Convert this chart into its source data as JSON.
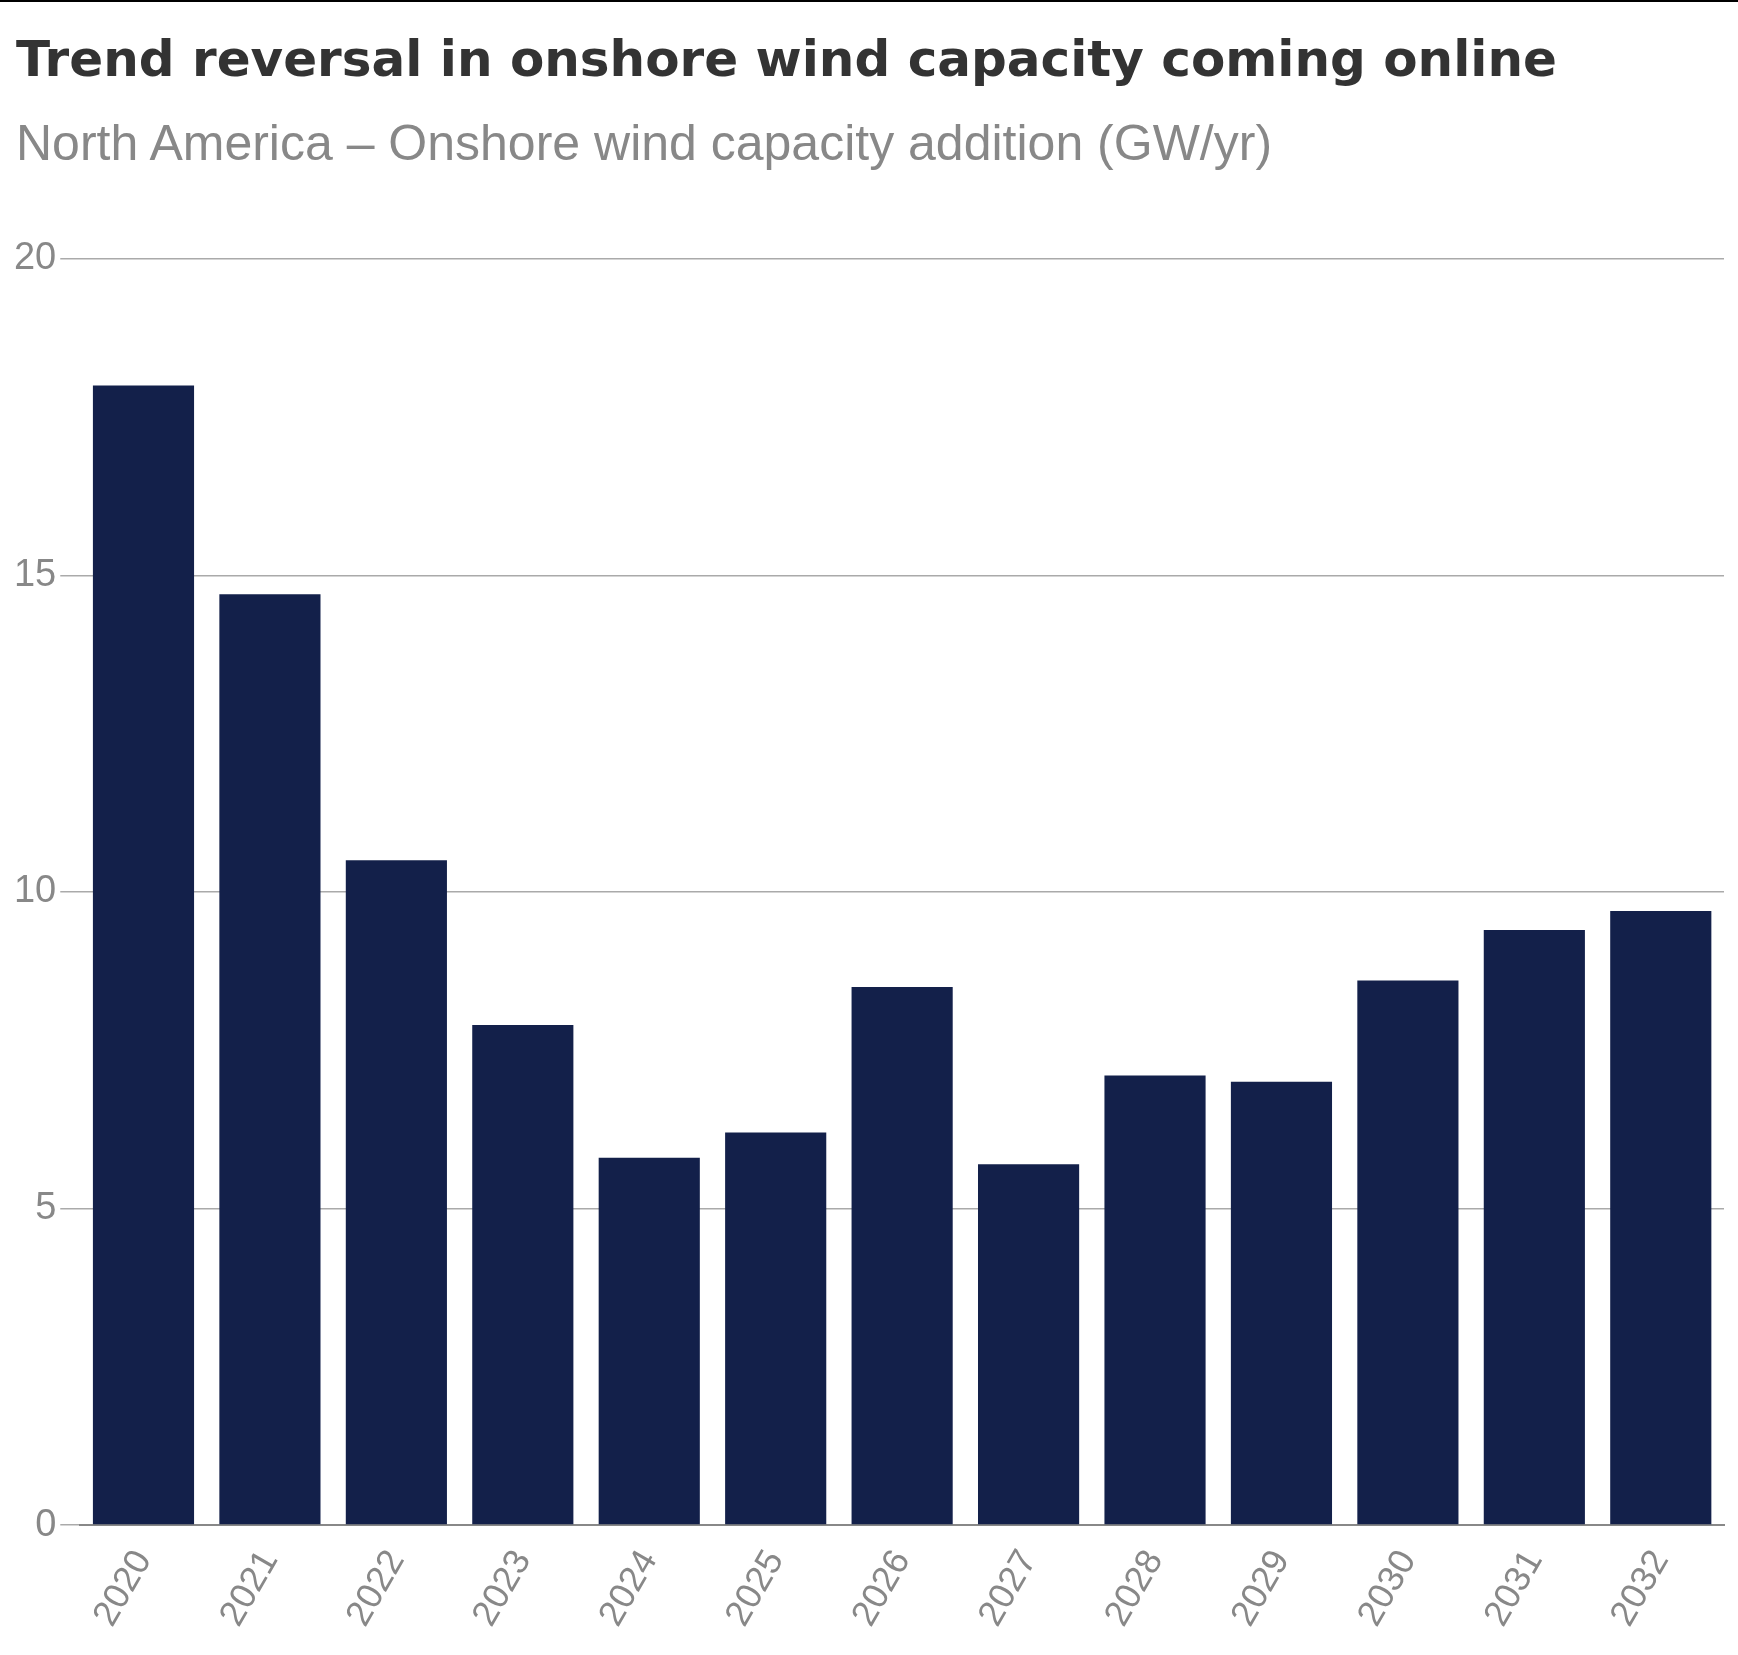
{
  "chart_data": {
    "type": "bar",
    "title": "Trend reversal in onshore wind capacity coming online",
    "subtitle": "North America – Onshore wind capacity addition (GW/yr)",
    "categories": [
      "2020",
      "2021",
      "2022",
      "2023",
      "2024",
      "2025",
      "2026",
      "2027",
      "2028",
      "2029",
      "2030",
      "2031",
      "2032"
    ],
    "values": [
      18.0,
      14.7,
      10.5,
      7.9,
      5.8,
      6.2,
      8.5,
      5.7,
      7.1,
      7.0,
      8.6,
      9.4,
      9.7
    ],
    "color": "#13204a",
    "ylim": [
      0,
      20
    ],
    "yticks": [
      0,
      5,
      10,
      15,
      20
    ],
    "grid": "y",
    "legend": false
  }
}
